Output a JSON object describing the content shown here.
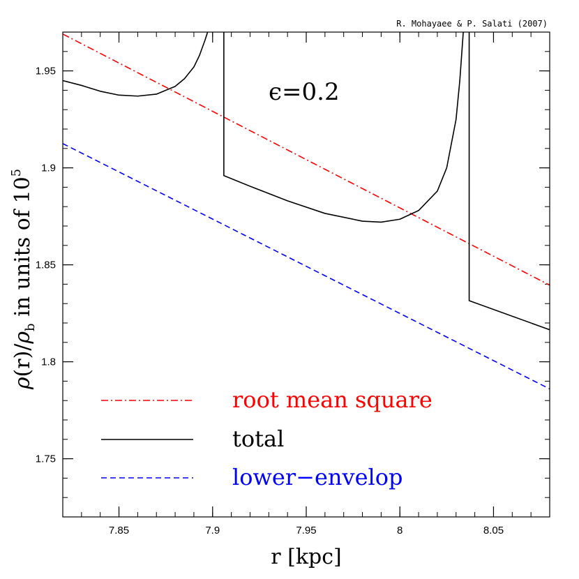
{
  "chart_data": {
    "type": "line",
    "credit": "R. Mohayaee & P. Salati (2007)",
    "annotation": "ϵ=0.2",
    "xlabel": "r [kpc]",
    "ylabel_parts": {
      "rho": "ρ",
      "r_arg": "(r)/",
      "rho2": "ρ",
      "sub_b": "b",
      "text": " in units of 10",
      "sup_5": "5"
    },
    "xlim": [
      7.82,
      8.08
    ],
    "ylim": [
      1.72,
      1.97
    ],
    "x_ticks": [
      {
        "value": 7.85,
        "label": "7.85"
      },
      {
        "value": 7.9,
        "label": "7.9"
      },
      {
        "value": 7.95,
        "label": "7.95"
      },
      {
        "value": 8.0,
        "label": "8"
      },
      {
        "value": 8.05,
        "label": "8.05"
      }
    ],
    "y_ticks": [
      {
        "value": 1.75,
        "label": "1.75"
      },
      {
        "value": 1.8,
        "label": "1.8"
      },
      {
        "value": 1.85,
        "label": "1.85"
      },
      {
        "value": 1.9,
        "label": "1.9"
      },
      {
        "value": 1.95,
        "label": "1.95"
      }
    ],
    "legend_position": "bottom-left",
    "series": [
      {
        "name": "root mean square",
        "color": "#ff0000",
        "dash": "dash-dot",
        "x": [
          7.82,
          8.08
        ],
        "y": [
          1.969,
          1.8395
        ]
      },
      {
        "name": "total",
        "color": "#000000",
        "dash": "solid",
        "segments": [
          {
            "x": [
              7.82,
              7.83,
              7.84,
              7.85,
              7.86,
              7.87,
              7.88,
              7.885,
              7.89,
              7.893,
              7.896,
              7.898
            ],
            "y": [
              1.945,
              1.9425,
              1.9395,
              1.9375,
              1.937,
              1.938,
              1.942,
              1.946,
              1.952,
              1.958,
              1.966,
              1.972
            ]
          },
          {
            "x": [
              7.906,
              7.906,
              7.92,
              7.94,
              7.96,
              7.98,
              7.99,
              8.0,
              8.01,
              8.02,
              8.025,
              8.03,
              8.032,
              8.034
            ],
            "y": [
              1.972,
              1.896,
              1.8905,
              1.883,
              1.8765,
              1.8725,
              1.872,
              1.8735,
              1.878,
              1.888,
              1.9,
              1.925,
              1.945,
              1.972
            ]
          },
          {
            "x": [
              8.037,
              8.037,
              8.08
            ],
            "y": [
              1.972,
              1.8315,
              1.8165
            ]
          }
        ]
      },
      {
        "name": "lower−envelop",
        "color": "#0000ff",
        "dash": "dashed",
        "x": [
          7.82,
          8.08
        ],
        "y": [
          1.9125,
          1.786
        ]
      }
    ]
  }
}
